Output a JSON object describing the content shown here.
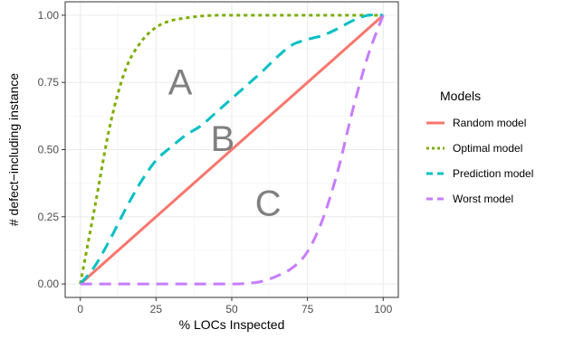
{
  "chart_data": {
    "type": "line",
    "xlabel": "% LOCs Inspected",
    "ylabel": "# defect−including instance",
    "xlim": [
      -5,
      105
    ],
    "ylim": [
      -0.05,
      1.05
    ],
    "x_ticks": [
      0,
      25,
      50,
      75,
      100
    ],
    "x_tick_labels": [
      "0",
      "25",
      "50",
      "75",
      "100"
    ],
    "y_ticks": [
      0,
      0.25,
      0.5,
      0.75,
      1.0
    ],
    "y_tick_labels": [
      "0.00",
      "0.25",
      "0.50",
      "0.75",
      "1.00"
    ],
    "grid": true,
    "legend": {
      "title": "Models",
      "position": "right"
    },
    "series": [
      {
        "name": "Random model",
        "color": "#F8766D",
        "dash": "solid",
        "x": [
          0,
          100
        ],
        "y": [
          0,
          1
        ]
      },
      {
        "name": "Optimal model",
        "color": "#7CAE00",
        "dash": "dotted",
        "x": [
          0,
          5,
          10,
          15,
          20,
          25,
          30,
          35,
          40,
          45,
          50,
          60,
          70,
          80,
          90,
          100
        ],
        "y": [
          0,
          0.3,
          0.6,
          0.8,
          0.9,
          0.955,
          0.98,
          0.99,
          0.997,
          1.0,
          1.0,
          1.0,
          1.0,
          1.0,
          1.0,
          1.0
        ]
      },
      {
        "name": "Prediction model",
        "color": "#00BFC4",
        "dash": "dashed",
        "x": [
          0,
          5,
          10,
          15,
          20,
          25,
          30,
          35,
          40,
          45,
          50,
          55,
          60,
          65,
          70,
          75,
          80,
          85,
          90,
          95,
          100
        ],
        "y": [
          0,
          0.07,
          0.17,
          0.28,
          0.38,
          0.46,
          0.51,
          0.555,
          0.59,
          0.64,
          0.69,
          0.74,
          0.79,
          0.845,
          0.89,
          0.91,
          0.925,
          0.95,
          0.98,
          1.0,
          1.0
        ]
      },
      {
        "name": "Worst model",
        "color": "#C77CFF",
        "dash": "dashed",
        "x": [
          0,
          10,
          20,
          30,
          40,
          50,
          55,
          60,
          65,
          70,
          75,
          80,
          85,
          90,
          95,
          100
        ],
        "y": [
          0,
          0,
          0,
          0,
          0,
          0,
          0.002,
          0.01,
          0.03,
          0.06,
          0.12,
          0.24,
          0.42,
          0.65,
          0.85,
          1.0
        ]
      }
    ],
    "annotations": [
      {
        "text": "A",
        "x": 33,
        "y": 0.74
      },
      {
        "text": "B",
        "x": 47,
        "y": 0.53
      },
      {
        "text": "C",
        "x": 62,
        "y": 0.29
      }
    ]
  }
}
